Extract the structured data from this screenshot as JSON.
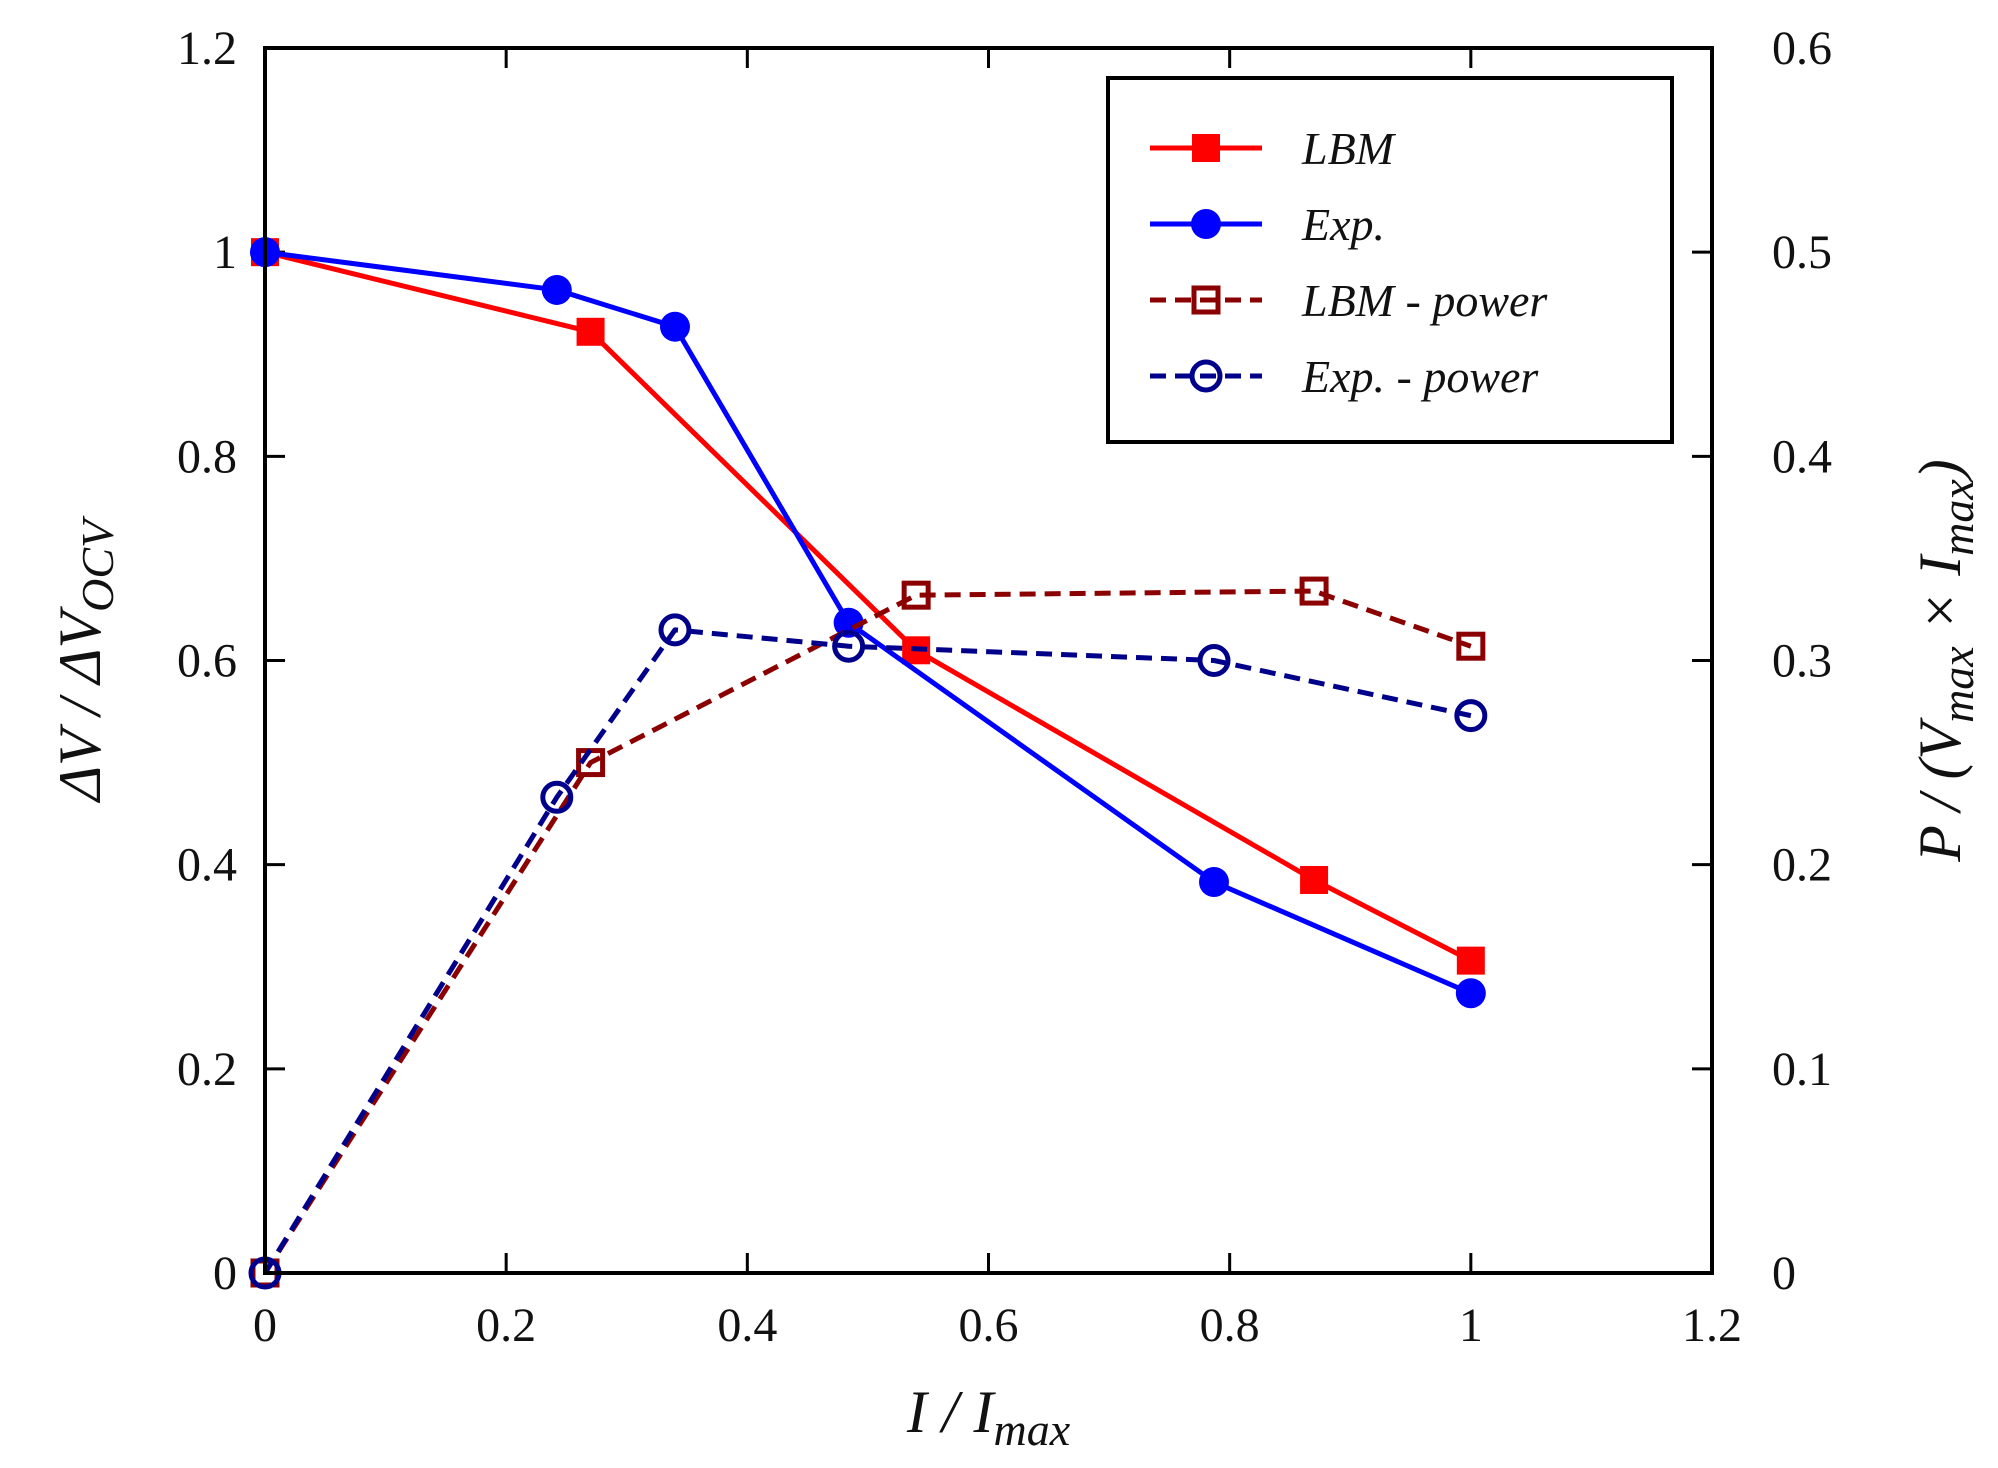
{
  "chart_data": {
    "type": "line",
    "xlabel": {
      "main": "I / I",
      "sub": "max"
    },
    "ylabel_left": {
      "main": "ΔV / ΔV",
      "sub": "OCV"
    },
    "ylabel_right": {
      "pre": "P / (V",
      "sub1": "max",
      "mid": " × I",
      "sub2": "max",
      "post": ")"
    },
    "xlim": [
      0,
      1.2
    ],
    "ylim_left": [
      0,
      1.2
    ],
    "ylim_right": [
      0,
      0.6
    ],
    "xticks": [
      "0",
      "0.2",
      "0.4",
      "0.6",
      "0.8",
      "1",
      "1.2"
    ],
    "xtick_values": [
      0,
      0.2,
      0.4,
      0.6,
      0.8,
      1.0,
      1.2
    ],
    "yticks_left": [
      "0",
      "0.2",
      "0.4",
      "0.6",
      "0.8",
      "1",
      "1.2"
    ],
    "ytick_values_left": [
      0,
      0.2,
      0.4,
      0.6,
      0.8,
      1.0,
      1.2
    ],
    "yticks_right": [
      "0",
      "0.1",
      "0.2",
      "0.3",
      "0.4",
      "0.5",
      "0.6"
    ],
    "ytick_values_right": [
      0,
      0.1,
      0.2,
      0.3,
      0.4,
      0.5,
      0.6
    ],
    "legend_position": "top-right",
    "series": [
      {
        "name": "LBM",
        "axis": "left",
        "color": "#ff0000",
        "line": "solid",
        "marker": "square-filled",
        "x": [
          0,
          0.27,
          0.54,
          0.87,
          1.0
        ],
        "y": [
          1.0,
          0.922,
          0.61,
          0.385,
          0.306
        ]
      },
      {
        "name": "Exp.",
        "axis": "left",
        "color": "#0000ff",
        "line": "solid",
        "marker": "circle-filled",
        "x": [
          0,
          0.242,
          0.34,
          0.484,
          0.787,
          1.0
        ],
        "y": [
          1.0,
          0.963,
          0.927,
          0.637,
          0.383,
          0.274
        ]
      },
      {
        "name": "LBM - power",
        "axis": "right",
        "color": "#8b0000",
        "line": "dashed",
        "marker": "square-open",
        "x": [
          0,
          0.27,
          0.54,
          0.87,
          1.0
        ],
        "y": [
          0,
          0.25,
          0.332,
          0.334,
          0.307
        ]
      },
      {
        "name": "Exp. - power",
        "axis": "right",
        "color": "#00008b",
        "line": "dashed",
        "marker": "circle-open",
        "x": [
          0,
          0.242,
          0.34,
          0.484,
          0.787,
          1.0
        ],
        "y": [
          0,
          0.233,
          0.315,
          0.307,
          0.3,
          0.273
        ]
      }
    ]
  }
}
